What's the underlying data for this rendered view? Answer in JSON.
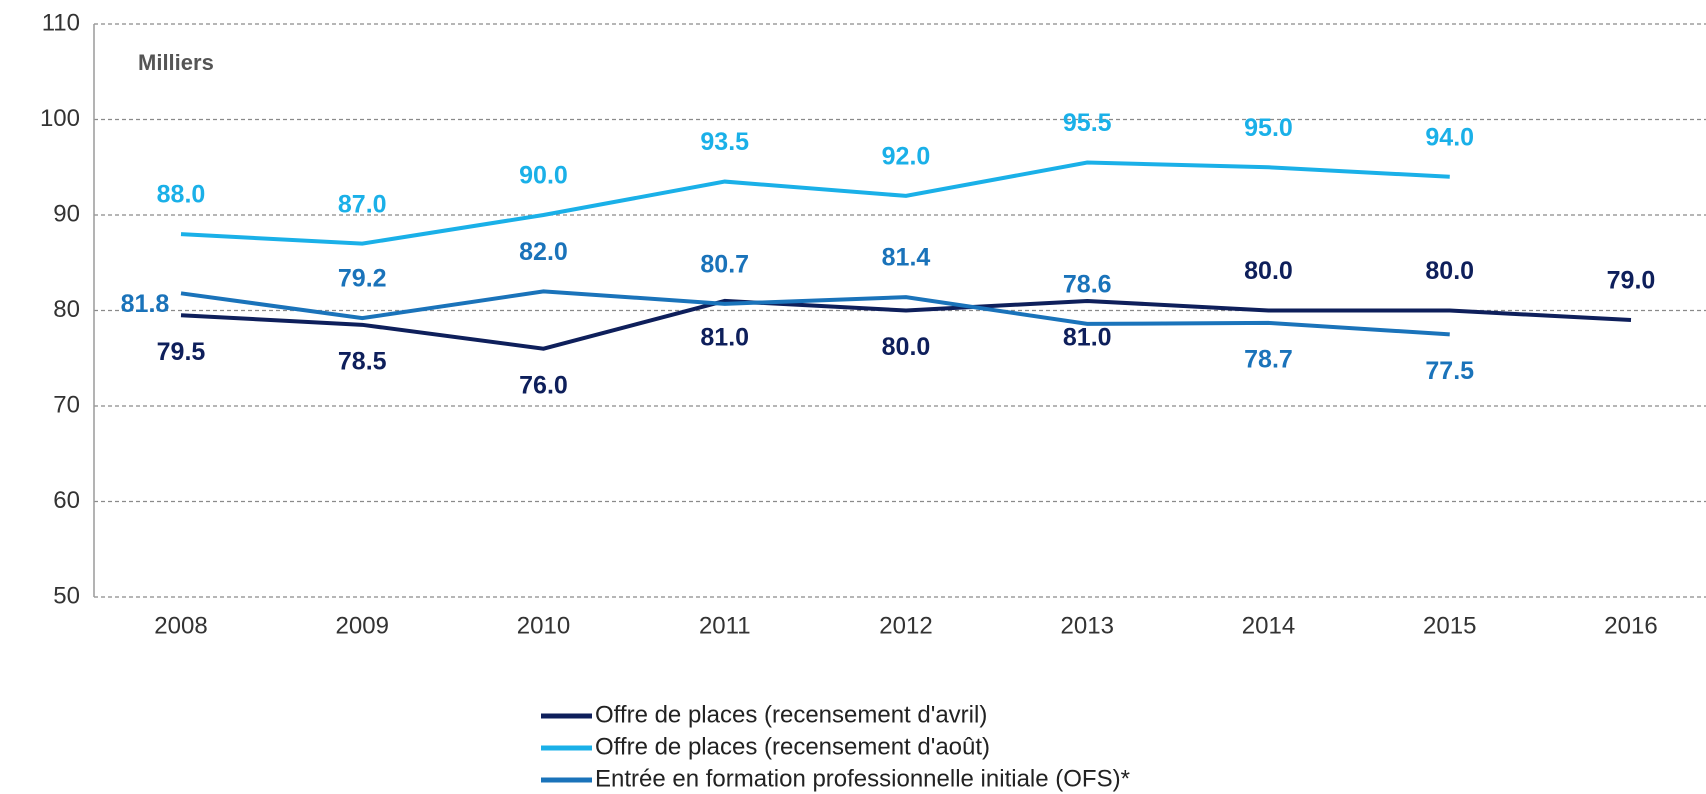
{
  "chart_data": {
    "type": "line",
    "subtitle": "Milliers",
    "categories": [
      "2008",
      "2009",
      "2010",
      "2011",
      "2012",
      "2013",
      "2014",
      "2015",
      "2016"
    ],
    "series": [
      {
        "name": "Offre de places (recensement d'avril)",
        "color": "#0e1f5b",
        "values": [
          79.5,
          78.5,
          76.0,
          81.0,
          80.0,
          81.0,
          80.0,
          80.0,
          79.0
        ],
        "value_labels": [
          "79.5",
          "78.5",
          "76.0",
          "81.0",
          "80.0",
          "81.0",
          "80.0",
          "80.0",
          "79.0"
        ]
      },
      {
        "name": "Offre de places (recensement d'août)",
        "color": "#1ab0e8",
        "values": [
          88.0,
          87.0,
          90.0,
          93.5,
          92.0,
          95.5,
          95.0,
          94.0,
          null
        ],
        "value_labels": [
          "88.0",
          "87.0",
          "90.0",
          "93.5",
          "92.0",
          "95.5",
          "95.0",
          "94.0",
          null
        ]
      },
      {
        "name": "Entrée en formation professionnelle initiale (OFS)*",
        "color": "#1a73ba",
        "values": [
          81.8,
          79.2,
          82.0,
          80.7,
          81.4,
          78.6,
          78.7,
          77.5,
          null
        ],
        "value_labels": [
          "81.8",
          "79.2",
          "82.0",
          "80.7",
          "81.4",
          "78.6",
          "78.7",
          "77.5",
          null
        ]
      }
    ],
    "ylim": [
      50,
      110
    ],
    "yticks": [
      50,
      60,
      70,
      80,
      90,
      100,
      110
    ],
    "grid": true
  }
}
